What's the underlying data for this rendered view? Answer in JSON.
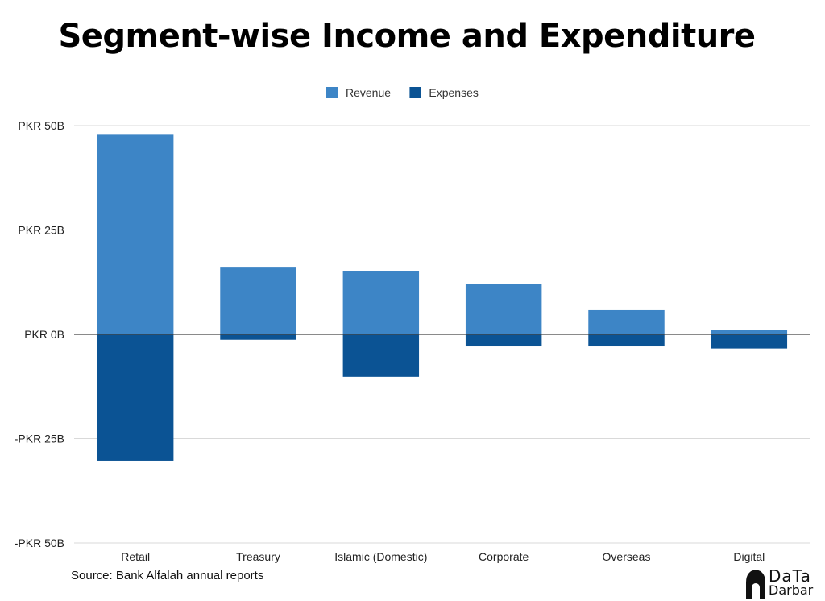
{
  "chart_data": {
    "type": "bar",
    "title": "Segment-wise Income and Expenditure",
    "categories": [
      "Retail",
      "Treasury",
      "Islamic (Domestic)",
      "Corporate",
      "Overseas",
      "Digital"
    ],
    "series": [
      {
        "name": "Revenue",
        "color": "#3d85c6",
        "values": [
          48,
          16,
          15.2,
          12,
          5.8,
          1.1
        ]
      },
      {
        "name": "Expenses",
        "color": "#0b5394",
        "values": [
          -30.3,
          -1.3,
          -10.2,
          -2.9,
          -2.9,
          -3.4
        ]
      }
    ],
    "ylim": [
      -50,
      50
    ],
    "yticks": [
      {
        "value": 50,
        "label": "PKR 50B"
      },
      {
        "value": 25,
        "label": "PKR 25B"
      },
      {
        "value": 0,
        "label": "PKR 0B"
      },
      {
        "value": -25,
        "label": "-PKR 25B"
      },
      {
        "value": -50,
        "label": "-PKR 50B"
      }
    ],
    "stacked": true,
    "grid": true,
    "legend_position": "top"
  },
  "source": "Source: Bank Alfalah annual reports",
  "logo": {
    "line1": "DaTa",
    "line2": "Darbar"
  }
}
